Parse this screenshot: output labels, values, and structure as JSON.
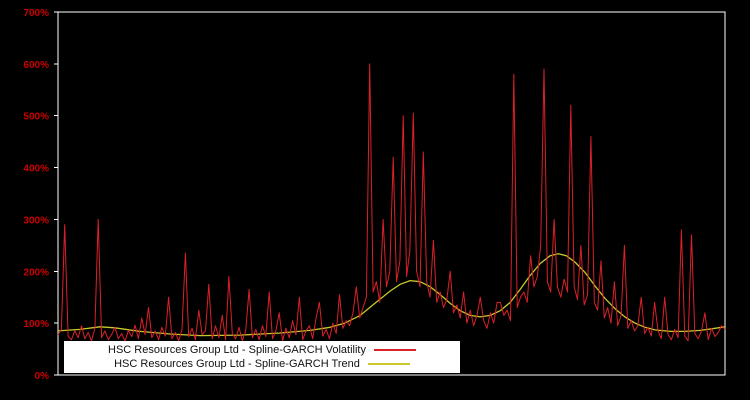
{
  "chart_data": {
    "type": "line",
    "title": "",
    "xlabel": "",
    "ylabel": "",
    "ylim": [
      0,
      700
    ],
    "grid": false,
    "background_color": "#000000",
    "axis_color": "#ffffff",
    "tick_label_color": "#cc0000",
    "legend_position": "bottom-left",
    "y_ticks": [
      {
        "value": 0,
        "label": "0%"
      },
      {
        "value": 100,
        "label": "100%"
      },
      {
        "value": 200,
        "label": "200%"
      },
      {
        "value": 300,
        "label": "300%"
      },
      {
        "value": 400,
        "label": "400%"
      },
      {
        "value": 500,
        "label": "500%"
      },
      {
        "value": 600,
        "label": "600%"
      },
      {
        "value": 700,
        "label": "700%"
      }
    ],
    "series": [
      {
        "name": "HSC Resources Group Ltd - Spline-GARCH Volatility",
        "color": "#da2128",
        "unit": "%",
        "values": [
          78,
          88,
          290,
          75,
          68,
          85,
          72,
          95,
          70,
          82,
          66,
          90,
          300,
          72,
          85,
          68,
          78,
          92,
          70,
          80,
          65,
          86,
          74,
          96,
          70,
          110,
          78,
          130,
          72,
          85,
          68,
          92,
          75,
          150,
          70,
          82,
          66,
          88,
          235,
          74,
          90,
          68,
          125,
          78,
          85,
          175,
          70,
          95,
          72,
          115,
          68,
          190,
          80,
          70,
          92,
          66,
          85,
          165,
          72,
          88,
          68,
          95,
          74,
          160,
          70,
          85,
          120,
          66,
          90,
          72,
          105,
          78,
          150,
          68,
          85,
          95,
          70,
          110,
          140,
          75,
          88,
          70,
          100,
          80,
          155,
          90,
          105,
          95,
          120,
          170,
          110,
          130,
          150,
          600,
          160,
          180,
          140,
          300,
          170,
          200,
          420,
          180,
          220,
          500,
          190,
          240,
          505,
          200,
          170,
          430,
          180,
          150,
          260,
          140,
          160,
          130,
          145,
          200,
          120,
          135,
          110,
          160,
          100,
          125,
          95,
          115,
          150,
          105,
          90,
          120,
          100,
          140,
          140,
          115,
          125,
          105,
          580,
          130,
          150,
          160,
          140,
          230,
          170,
          190,
          250,
          590,
          180,
          160,
          300,
          170,
          150,
          185,
          160,
          520,
          170,
          145,
          250,
          135,
          155,
          460,
          140,
          125,
          220,
          110,
          130,
          100,
          180,
          95,
          115,
          250,
          90,
          105,
          85,
          95,
          150,
          80,
          92,
          75,
          140,
          85,
          70,
          150,
          78,
          68,
          88,
          72,
          280,
          75,
          66,
          270,
          80,
          70,
          85,
          120,
          68,
          90,
          74,
          82,
          95,
          88
        ]
      },
      {
        "name": "HSC Resources Group Ltd - Spline-GARCH Trend",
        "color": "#c9c92c",
        "unit": "%",
        "points": [
          [
            0.0,
            85
          ],
          [
            0.033,
            88
          ],
          [
            0.063,
            93
          ],
          [
            0.085,
            91
          ],
          [
            0.123,
            84
          ],
          [
            0.168,
            79
          ],
          [
            0.213,
            76
          ],
          [
            0.273,
            77
          ],
          [
            0.333,
            81
          ],
          [
            0.378,
            86
          ],
          [
            0.408,
            92
          ],
          [
            0.43,
            100
          ],
          [
            0.453,
            115
          ],
          [
            0.475,
            138
          ],
          [
            0.498,
            162
          ],
          [
            0.513,
            175
          ],
          [
            0.528,
            182
          ],
          [
            0.543,
            180
          ],
          [
            0.558,
            170
          ],
          [
            0.573,
            155
          ],
          [
            0.588,
            138
          ],
          [
            0.603,
            124
          ],
          [
            0.618,
            115
          ],
          [
            0.633,
            112
          ],
          [
            0.648,
            115
          ],
          [
            0.663,
            124
          ],
          [
            0.678,
            140
          ],
          [
            0.693,
            165
          ],
          [
            0.708,
            192
          ],
          [
            0.723,
            215
          ],
          [
            0.738,
            230
          ],
          [
            0.75,
            234
          ],
          [
            0.762,
            230
          ],
          [
            0.775,
            218
          ],
          [
            0.79,
            198
          ],
          [
            0.805,
            172
          ],
          [
            0.82,
            148
          ],
          [
            0.835,
            128
          ],
          [
            0.85,
            112
          ],
          [
            0.865,
            100
          ],
          [
            0.88,
            92
          ],
          [
            0.895,
            87
          ],
          [
            0.918,
            84
          ],
          [
            0.94,
            84
          ],
          [
            0.963,
            86
          ],
          [
            0.98,
            89
          ],
          [
            1.0,
            93
          ]
        ]
      }
    ]
  }
}
